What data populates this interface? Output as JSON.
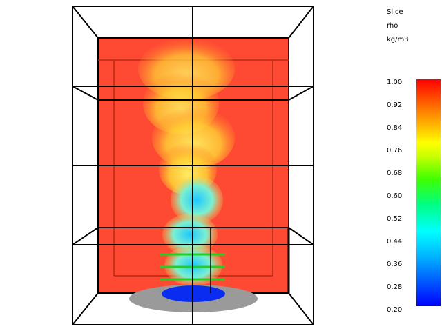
{
  "legend": {
    "title": "Slice",
    "quantity": "rho",
    "unit": "kg/m3",
    "ticks": [
      "1.00",
      "0.92",
      "0.84",
      "0.76",
      "0.68",
      "0.60",
      "0.52",
      "0.44",
      "0.36",
      "0.28",
      "0.20"
    ],
    "colors": [
      "#0000ff",
      "#00b4ff",
      "#00ffff",
      "#00ff80",
      "#40ff00",
      "#c8ff00",
      "#ffff00",
      "#ffb400",
      "#ff6e00",
      "#ff0000"
    ]
  },
  "scene": {
    "slice_background": "#ff4a33",
    "burner_color": "#0a2cf0",
    "floor_disc_color": "#9a9a9a",
    "sensor_color": "#22d022"
  }
}
